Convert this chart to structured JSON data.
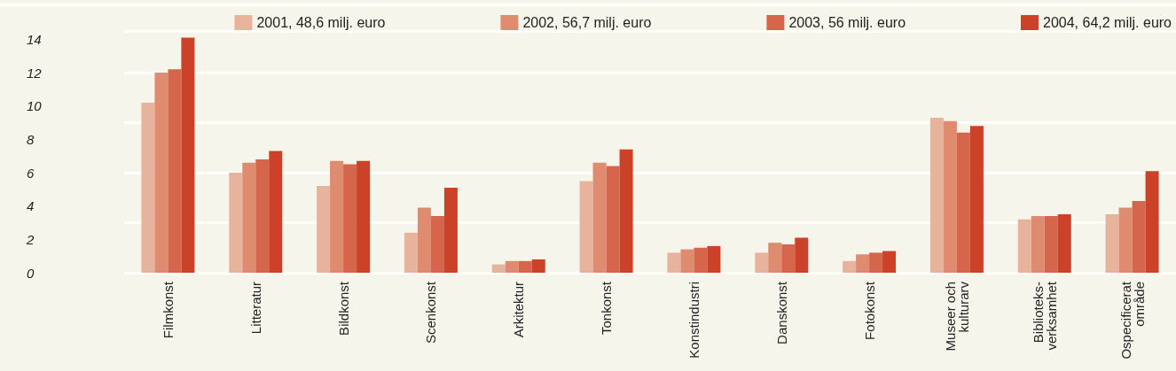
{
  "chart_data": {
    "type": "bar",
    "categories": [
      "Filmkonst",
      "Litteratur",
      "Bildkonst",
      "Scenkonst",
      "Arkitektur",
      "Tonkonst",
      "Konstindustri",
      "Danskonst",
      "Fotokonst",
      "Museer och\nkulturarv",
      "Biblioteks-\nverksamhet",
      "Ospecificerat\nområde"
    ],
    "series": [
      {
        "name": "2001, 48,6 milj. euro",
        "color": "#e8b39c",
        "values": [
          10.2,
          6.0,
          5.2,
          2.4,
          0.5,
          5.5,
          1.2,
          1.2,
          0.7,
          9.3,
          3.2,
          3.5
        ]
      },
      {
        "name": "2002, 56,7 milj. euro",
        "color": "#de8b6f",
        "values": [
          12.0,
          6.6,
          6.7,
          3.9,
          0.7,
          6.6,
          1.4,
          1.8,
          1.1,
          9.1,
          3.4,
          3.9
        ]
      },
      {
        "name": "2003, 56 milj. euro",
        "color": "#d5664b",
        "values": [
          12.2,
          6.8,
          6.5,
          3.4,
          0.7,
          6.4,
          1.5,
          1.7,
          1.2,
          8.4,
          3.4,
          4.3
        ]
      },
      {
        "name": "2004, 64,2 milj. euro",
        "color": "#cc4229",
        "values": [
          14.1,
          7.3,
          6.7,
          5.1,
          0.8,
          7.4,
          1.6,
          2.1,
          1.3,
          8.8,
          3.5,
          6.1
        ]
      }
    ],
    "ylim": [
      0,
      14.5
    ],
    "yticks": [
      0,
      2,
      4,
      6,
      8,
      10,
      12,
      14
    ],
    "grid": true,
    "legend": "top right"
  }
}
